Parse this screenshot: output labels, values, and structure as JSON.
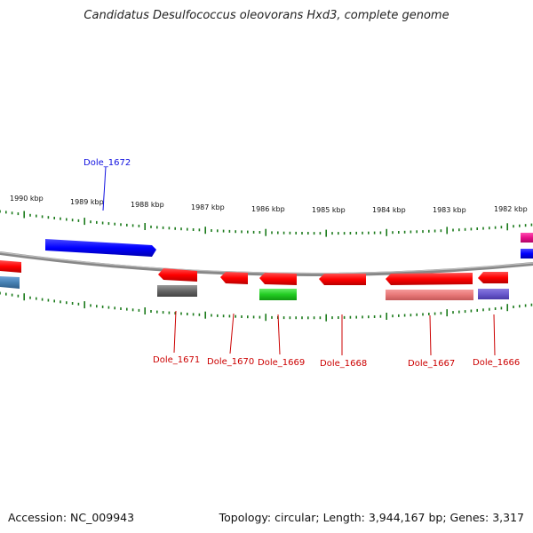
{
  "title": "Candidatus Desulfococcus oleovorans Hxd3, complete genome",
  "accession": "Accession: NC_009943",
  "summary": "Topology: circular; Length: 3,944,167 bp; Genes: 3,317",
  "ticks": [
    "1990 kbp",
    "1989 kbp",
    "1988 kbp",
    "1987 kbp",
    "1986 kbp",
    "1985 kbp",
    "1984 kbp",
    "1983 kbp",
    "1982 kbp"
  ],
  "genes": [
    {
      "label": "Dole_1672",
      "color": "#1010e0"
    },
    {
      "label": "Dole_1671",
      "color": "#cc0000"
    },
    {
      "label": "Dole_1670",
      "color": "#cc0000"
    },
    {
      "label": "Dole_1669",
      "color": "#cc0000"
    },
    {
      "label": "Dole_1668",
      "color": "#cc0000"
    },
    {
      "label": "Dole_1667",
      "color": "#cc0000"
    },
    {
      "label": "Dole_1666",
      "color": "#cc0000"
    }
  ]
}
